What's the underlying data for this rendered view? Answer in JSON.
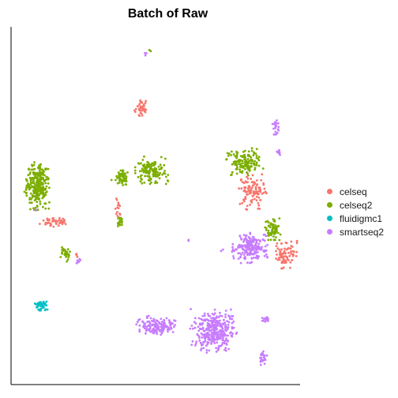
{
  "chart_data": {
    "type": "scatter",
    "title": "Batch of Raw",
    "xlabel": "",
    "ylabel": "",
    "grid": false,
    "axes_ticks": false,
    "legend_position": "right",
    "series": [
      {
        "name": "celseq",
        "color": "#F8766D",
        "clusters": [
          {
            "cx": 0.445,
            "cy": 0.8,
            "rx": 0.022,
            "ry": 0.028,
            "n": 40
          },
          {
            "cx": 0.135,
            "cy": 0.465,
            "rx": 0.045,
            "ry": 0.012,
            "n": 50
          },
          {
            "cx": 0.362,
            "cy": 0.5,
            "rx": 0.01,
            "ry": 0.028,
            "n": 15
          },
          {
            "cx": 0.84,
            "cy": 0.555,
            "rx": 0.045,
            "ry": 0.045,
            "n": 110
          },
          {
            "cx": 0.955,
            "cy": 0.37,
            "rx": 0.035,
            "ry": 0.035,
            "n": 80
          },
          {
            "cx": 0.215,
            "cy": 0.37,
            "rx": 0.008,
            "ry": 0.008,
            "n": 4
          }
        ]
      },
      {
        "name": "celseq2",
        "color": "#7CAE00",
        "clusters": [
          {
            "cx": 0.075,
            "cy": 0.57,
            "rx": 0.038,
            "ry": 0.06,
            "n": 280
          },
          {
            "cx": 0.48,
            "cy": 0.615,
            "rx": 0.05,
            "ry": 0.035,
            "n": 140
          },
          {
            "cx": 0.37,
            "cy": 0.595,
            "rx": 0.03,
            "ry": 0.02,
            "n": 60
          },
          {
            "cx": 0.37,
            "cy": 0.465,
            "rx": 0.012,
            "ry": 0.012,
            "n": 20
          },
          {
            "cx": 0.81,
            "cy": 0.64,
            "rx": 0.055,
            "ry": 0.035,
            "n": 150
          },
          {
            "cx": 0.91,
            "cy": 0.44,
            "rx": 0.025,
            "ry": 0.03,
            "n": 70
          },
          {
            "cx": 0.175,
            "cy": 0.37,
            "rx": 0.015,
            "ry": 0.018,
            "n": 30
          },
          {
            "cx": 0.475,
            "cy": 0.965,
            "rx": 0.005,
            "ry": 0.005,
            "n": 2
          }
        ]
      },
      {
        "name": "fluidigmc1",
        "color": "#00BFC4",
        "clusters": [
          {
            "cx": 0.095,
            "cy": 0.22,
            "rx": 0.025,
            "ry": 0.012,
            "n": 40
          }
        ]
      },
      {
        "name": "smartseq2",
        "color": "#C77CFF",
        "clusters": [
          {
            "cx": 0.46,
            "cy": 0.96,
            "rx": 0.006,
            "ry": 0.006,
            "n": 3
          },
          {
            "cx": 0.92,
            "cy": 0.74,
            "rx": 0.01,
            "ry": 0.028,
            "n": 20
          },
          {
            "cx": 0.83,
            "cy": 0.39,
            "rx": 0.055,
            "ry": 0.038,
            "n": 200
          },
          {
            "cx": 0.22,
            "cy": 0.35,
            "rx": 0.012,
            "ry": 0.008,
            "n": 10
          },
          {
            "cx": 0.495,
            "cy": 0.16,
            "rx": 0.06,
            "ry": 0.025,
            "n": 150
          },
          {
            "cx": 0.7,
            "cy": 0.145,
            "rx": 0.07,
            "ry": 0.055,
            "n": 320
          },
          {
            "cx": 0.885,
            "cy": 0.18,
            "rx": 0.015,
            "ry": 0.01,
            "n": 15
          },
          {
            "cx": 0.875,
            "cy": 0.07,
            "rx": 0.015,
            "ry": 0.02,
            "n": 25
          },
          {
            "cx": 0.93,
            "cy": 0.67,
            "rx": 0.01,
            "ry": 0.01,
            "n": 8
          },
          {
            "cx": 0.61,
            "cy": 0.41,
            "rx": 0.004,
            "ry": 0.004,
            "n": 2
          },
          {
            "cx": 0.73,
            "cy": 0.38,
            "rx": 0.004,
            "ry": 0.004,
            "n": 2
          },
          {
            "cx": 0.07,
            "cy": 0.5,
            "rx": 0.004,
            "ry": 0.004,
            "n": 2
          }
        ]
      }
    ]
  }
}
